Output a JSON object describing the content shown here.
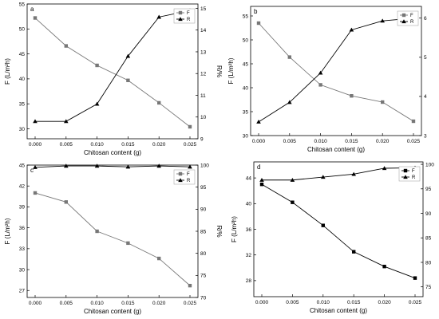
{
  "chart_data": [
    {
      "type": "line",
      "panel": "a",
      "x": [
        0.0,
        0.005,
        0.01,
        0.015,
        0.02,
        0.025
      ],
      "xlabel": "Chitosan content (g)",
      "xticks": [
        "0.000",
        "0.005",
        "0.010",
        "0.015",
        "0.020",
        "0.025"
      ],
      "xlim": [
        0.0,
        0.025
      ],
      "left_axis": {
        "label": "F (L/m²h)",
        "ylim": [
          28,
          55
        ],
        "ticks": [
          30,
          35,
          40,
          45,
          50,
          55
        ]
      },
      "right_axis": {
        "label": "R/%",
        "ylim": [
          9,
          15.2
        ],
        "ticks": [
          9,
          10,
          11,
          12,
          13,
          14,
          15
        ]
      },
      "series": [
        {
          "name": "F",
          "axis": "left",
          "marker": "square",
          "color": "#777777",
          "values": [
            52.2,
            46.6,
            42.7,
            39.7,
            35.2,
            30.4
          ]
        },
        {
          "name": "R",
          "axis": "right",
          "marker": "triangle",
          "color": "#000000",
          "values": [
            9.8,
            9.8,
            10.6,
            12.8,
            14.6,
            14.9
          ]
        }
      ],
      "legend": "top-right",
      "grid": false
    },
    {
      "type": "line",
      "panel": "b",
      "x": [
        0.0,
        0.005,
        0.01,
        0.015,
        0.02,
        0.025
      ],
      "xlabel": "Chitosan content (g)",
      "xticks": [
        "0.000",
        "0.005",
        "0.010",
        "0.015",
        "0.020",
        "0.025"
      ],
      "xlim": [
        0.0,
        0.025
      ],
      "left_axis": {
        "label": "F (L/m²h)",
        "ylim": [
          30,
          57
        ],
        "ticks": [
          30,
          35,
          40,
          45,
          50,
          55
        ]
      },
      "right_axis": {
        "label": "R/%",
        "ylim": [
          3,
          6.3
        ],
        "ticks": [
          3,
          4,
          5,
          6
        ]
      },
      "series": [
        {
          "name": "F",
          "axis": "left",
          "marker": "square",
          "color": "#777777",
          "values": [
            53.5,
            46.4,
            40.6,
            38.3,
            37.0,
            33.0
          ]
        },
        {
          "name": "R",
          "axis": "right",
          "marker": "triangle",
          "color": "#000000",
          "values": [
            3.35,
            3.85,
            4.6,
            5.7,
            5.93,
            6.0
          ]
        }
      ],
      "legend": "top-right",
      "grid": false
    },
    {
      "type": "line",
      "panel": "c",
      "x": [
        0.0,
        0.005,
        0.01,
        0.015,
        0.02,
        0.025
      ],
      "xlabel": "Chitosan content (g)",
      "xticks": [
        "0.000",
        "0.005",
        "0.010",
        "0.015",
        "0.020",
        "0.025"
      ],
      "xlim": [
        0.0,
        0.025
      ],
      "left_axis": {
        "label": "F (L/m²h)",
        "ylim": [
          26,
          45
        ],
        "ticks": [
          27,
          30,
          33,
          36,
          39,
          42,
          45
        ]
      },
      "right_axis": {
        "label": "R/%",
        "ylim": [
          70,
          100
        ],
        "ticks": [
          70,
          75,
          80,
          85,
          90,
          95,
          100
        ]
      },
      "series": [
        {
          "name": "F",
          "axis": "left",
          "marker": "square",
          "color": "#777777",
          "values": [
            41.0,
            39.7,
            35.5,
            33.8,
            31.6,
            27.7
          ]
        },
        {
          "name": "R",
          "axis": "right",
          "marker": "triangle",
          "color": "#000000",
          "values": [
            99.5,
            99.8,
            99.8,
            99.6,
            99.8,
            99.6
          ]
        }
      ],
      "legend": "top-right",
      "grid": false
    },
    {
      "type": "line",
      "panel": "d",
      "x": [
        0.0,
        0.005,
        0.01,
        0.015,
        0.02,
        0.025
      ],
      "xlabel": "Chitosan content (g)",
      "xticks": [
        "0.000",
        "0.005",
        "0.010",
        "0.015",
        "0.020",
        "0.025"
      ],
      "xlim": [
        0.0,
        0.025
      ],
      "left_axis": {
        "label": "F (L/m²h)",
        "ylim": [
          25.5,
          46.5
        ],
        "ticks": [
          28,
          32,
          36,
          40,
          44
        ]
      },
      "right_axis": {
        "label": "R/%",
        "ylim": [
          73,
          100.5
        ],
        "ticks": [
          75,
          80,
          85,
          90,
          95,
          100
        ]
      },
      "series": [
        {
          "name": "F",
          "axis": "left",
          "marker": "square",
          "color": "#000000",
          "values": [
            43.0,
            40.2,
            36.6,
            32.5,
            30.2,
            28.4
          ]
        },
        {
          "name": "R",
          "axis": "right",
          "marker": "triangle",
          "color": "#000000",
          "values": [
            96.8,
            96.8,
            97.4,
            98.0,
            99.2,
            99.3
          ]
        }
      ],
      "legend": "top-right",
      "grid": false
    }
  ]
}
